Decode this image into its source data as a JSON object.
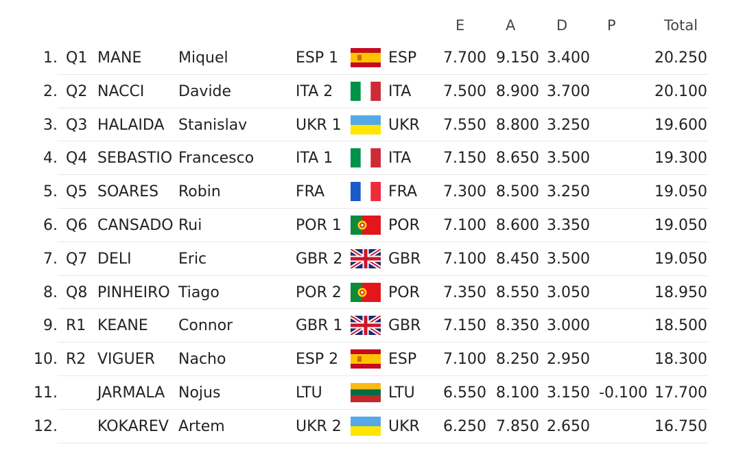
{
  "headers": {
    "e": "E",
    "a": "A",
    "d": "D",
    "p": "P",
    "total": "Total"
  },
  "rows": [
    {
      "rank": "1.",
      "seed": "Q1",
      "last": "MANE",
      "first": "Miquel",
      "team": "ESP 1",
      "flag": "esp-flag-icon",
      "nation": "ESP",
      "e": "7.700",
      "a": "9.150",
      "d": "3.400",
      "p": "",
      "total": "20.250"
    },
    {
      "rank": "2.",
      "seed": "Q2",
      "last": "NACCI",
      "first": "Davide",
      "team": "ITA 2",
      "flag": "ita-flag-icon",
      "nation": "ITA",
      "e": "7.500",
      "a": "8.900",
      "d": "3.700",
      "p": "",
      "total": "20.100"
    },
    {
      "rank": "3.",
      "seed": "Q3",
      "last": "HALAIDA",
      "first": "Stanislav",
      "team": "UKR 1",
      "flag": "ukr-flag-icon",
      "nation": "UKR",
      "e": "7.550",
      "a": "8.800",
      "d": "3.250",
      "p": "",
      "total": "19.600"
    },
    {
      "rank": "4.",
      "seed": "Q4",
      "last": "SEBASTIO",
      "first": "Francesco",
      "team": "ITA 1",
      "flag": "ita-flag-icon",
      "nation": "ITA",
      "e": "7.150",
      "a": "8.650",
      "d": "3.500",
      "p": "",
      "total": "19.300"
    },
    {
      "rank": "5.",
      "seed": "Q5",
      "last": "SOARES",
      "first": "Robin",
      "team": "FRA",
      "flag": "fra-flag-icon",
      "nation": "FRA",
      "e": "7.300",
      "a": "8.500",
      "d": "3.250",
      "p": "",
      "total": "19.050"
    },
    {
      "rank": "6.",
      "seed": "Q6",
      "last": "CANSADO",
      "first": "Rui",
      "team": "POR 1",
      "flag": "por-flag-icon",
      "nation": "POR",
      "e": "7.100",
      "a": "8.600",
      "d": "3.350",
      "p": "",
      "total": "19.050"
    },
    {
      "rank": "7.",
      "seed": "Q7",
      "last": "DELI",
      "first": "Eric",
      "team": "GBR 2",
      "flag": "gbr-flag-icon",
      "nation": "GBR",
      "e": "7.100",
      "a": "8.450",
      "d": "3.500",
      "p": "",
      "total": "19.050"
    },
    {
      "rank": "8.",
      "seed": "Q8",
      "last": "PINHEIRO",
      "first": "Tiago",
      "team": "POR 2",
      "flag": "por-flag-icon",
      "nation": "POR",
      "e": "7.350",
      "a": "8.550",
      "d": "3.050",
      "p": "",
      "total": "18.950"
    },
    {
      "rank": "9.",
      "seed": "R1",
      "last": "KEANE",
      "first": "Connor",
      "team": "GBR 1",
      "flag": "gbr-flag-icon",
      "nation": "GBR",
      "e": "7.150",
      "a": "8.350",
      "d": "3.000",
      "p": "",
      "total": "18.500"
    },
    {
      "rank": "10.",
      "seed": "R2",
      "last": "VIGUER",
      "first": "Nacho",
      "team": "ESP 2",
      "flag": "esp-flag-icon",
      "nation": "ESP",
      "e": "7.100",
      "a": "8.250",
      "d": "2.950",
      "p": "",
      "total": "18.300"
    },
    {
      "rank": "11.",
      "seed": "",
      "last": "JARMALA",
      "first": "Nojus",
      "team": "LTU",
      "flag": "ltu-flag-icon",
      "nation": "LTU",
      "e": "6.550",
      "a": "8.100",
      "d": "3.150",
      "p": "-0.100",
      "total": "17.700"
    },
    {
      "rank": "12.",
      "seed": "",
      "last": "KOKAREV",
      "first": "Artem",
      "team": "UKR 2",
      "flag": "ukr-flag-icon",
      "nation": "UKR",
      "e": "6.250",
      "a": "7.850",
      "d": "2.650",
      "p": "",
      "total": "16.750"
    }
  ]
}
